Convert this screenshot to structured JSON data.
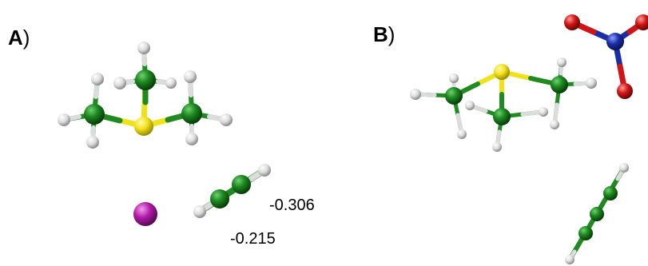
{
  "figure": {
    "panels": [
      {
        "id": "A",
        "letter": "A",
        "paren": ")"
      },
      {
        "id": "B",
        "letter": "B",
        "paren": ")"
      }
    ],
    "charges": [
      {
        "panel": "A",
        "value": "-0.306"
      },
      {
        "panel": "A",
        "value": "-0.215"
      }
    ]
  },
  "colors": {
    "carbon": "#0d6b12",
    "hydrogen": "#e6e6e6",
    "sulfur": "#f0e21a",
    "iodine": "#b01aa8",
    "nitrogen": "#1a2ea8",
    "oxygen": "#d11414"
  }
}
